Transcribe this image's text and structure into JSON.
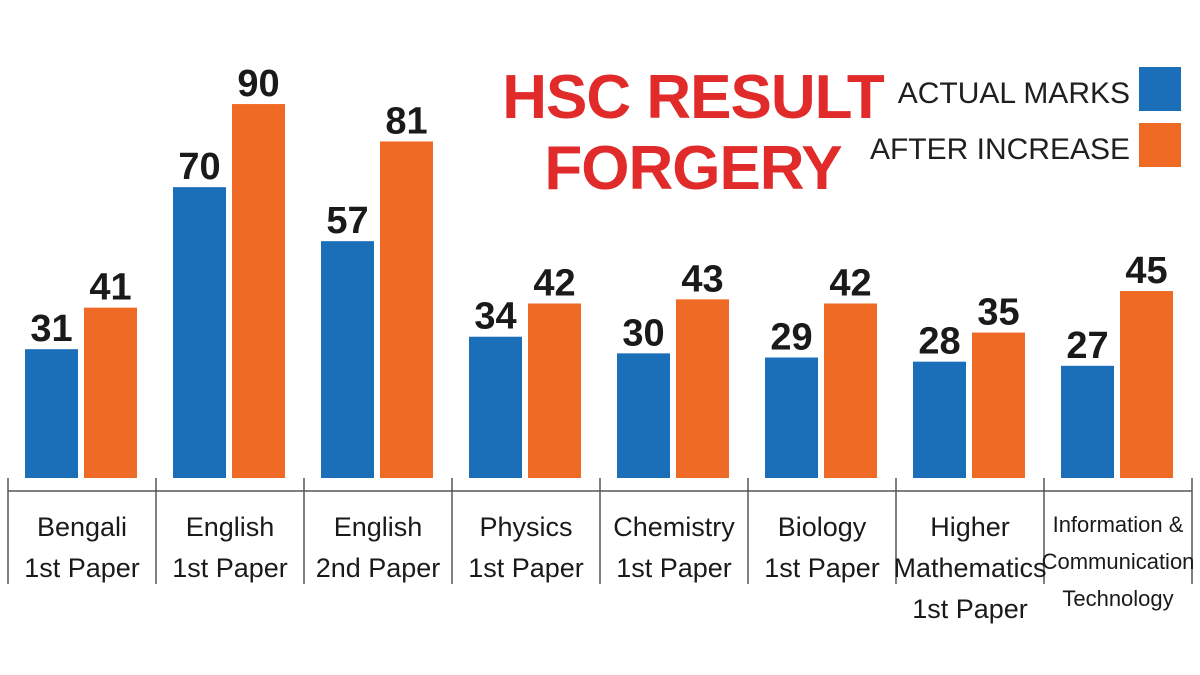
{
  "chart_data": {
    "type": "bar",
    "title_lines": [
      "HSC RESULT",
      "FORGERY"
    ],
    "categories": [
      [
        "Bengali",
        "1st Paper"
      ],
      [
        "English",
        "1st Paper"
      ],
      [
        "English",
        "2nd Paper"
      ],
      [
        "Physics",
        "1st Paper"
      ],
      [
        "Chemistry",
        "1st Paper"
      ],
      [
        "Biology",
        "1st Paper"
      ],
      [
        "Higher",
        "Mathematics",
        "1st Paper"
      ],
      [
        "Information &",
        "Communication",
        "Technology"
      ]
    ],
    "series": [
      {
        "name": "ACTUAL MARKS",
        "color": "#1a6fb8",
        "values": [
          31,
          70,
          57,
          34,
          30,
          29,
          28,
          27
        ]
      },
      {
        "name": "AFTER INCREASE",
        "color": "#ef6a25",
        "values": [
          41,
          90,
          81,
          42,
          43,
          42,
          35,
          45
        ]
      }
    ],
    "ylim": [
      0,
      100
    ],
    "grid": false,
    "legend_position": "top-right",
    "data_labels": true
  }
}
